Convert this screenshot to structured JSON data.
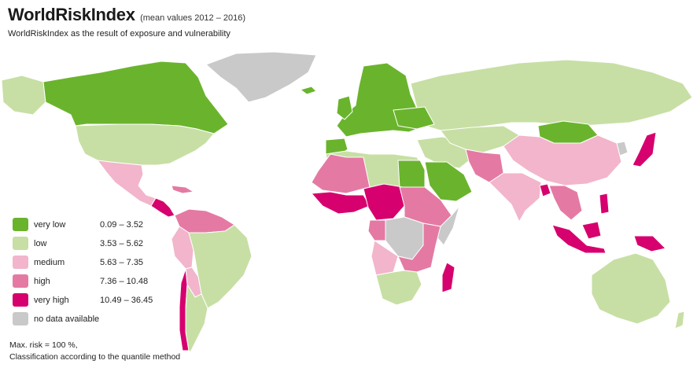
{
  "header": {
    "title": "WorldRiskIndex",
    "title_note": "(mean values 2012 – 2016)",
    "subtitle": "WorldRiskIndex as the result of exposure and vulnerability"
  },
  "legend": {
    "items": [
      {
        "label": "very low",
        "range": "0.09  –   3.52",
        "color": "#6ab42d"
      },
      {
        "label": "low",
        "range": "3.53  –   5.62",
        "color": "#c7dfa4"
      },
      {
        "label": "medium",
        "range": "5.63  –   7.35",
        "color": "#f2b5cb"
      },
      {
        "label": "high",
        "range": "7.36  – 10.48",
        "color": "#e47aa3"
      },
      {
        "label": "very high",
        "range": "10.49  – 36.45",
        "color": "#d6006e"
      },
      {
        "label": "no data available",
        "range": "",
        "color": "#c9c9c9"
      }
    ]
  },
  "footnote": {
    "line1": "Max. risk = 100 %,",
    "line2": "Classification according to the quantile method"
  },
  "colors": {
    "very_low": "#6ab42d",
    "low": "#c7dfa4",
    "medium": "#f2b5cb",
    "high": "#e47aa3",
    "very_high": "#d6006e",
    "no_data": "#c9c9c9"
  }
}
